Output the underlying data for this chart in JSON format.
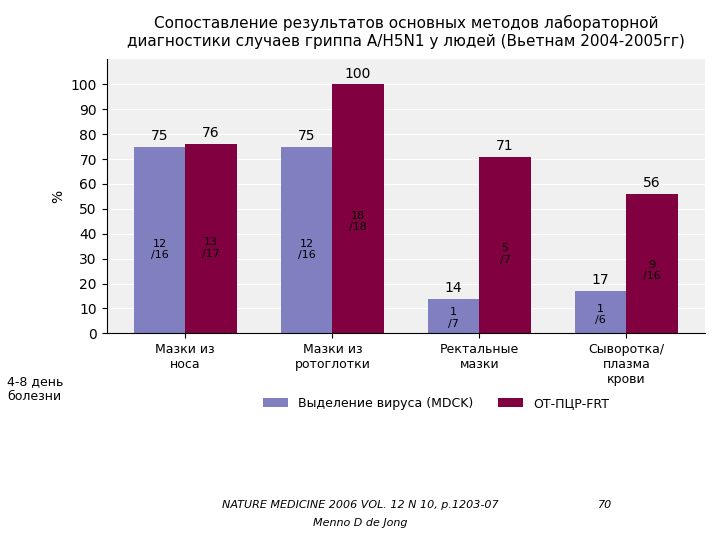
{
  "title": "Сопоставление результатов основных методов лабораторной\nдиагностики случаев гриппа А/H5N1 у людей (Вьетнам 2004-2005гг)",
  "categories": [
    "Мазки из\nноса",
    "Мазки из\nротоглотки",
    "Ректальные\nмазки",
    "Сыворотка/\nплазма\nкрови"
  ],
  "series1_values": [
    75,
    75,
    14,
    17
  ],
  "series2_values": [
    76,
    100,
    71,
    56
  ],
  "series1_label": "Выделение вируса (МDCK)",
  "series2_label": "ОТ-ПЦР-FRT",
  "series1_color": "#8080c0",
  "series2_color": "#800040",
  "series1_inner_labels": [
    "12\n/16",
    "12\n/16",
    "1\n/7",
    "1\n/6"
  ],
  "series2_inner_labels": [
    "13\n/17",
    "18\n/18",
    "5\n/7",
    "9\n/16"
  ],
  "ylabel": "%",
  "ylim": [
    0,
    110
  ],
  "yticks": [
    0,
    10,
    20,
    30,
    40,
    50,
    60,
    70,
    80,
    90,
    100
  ],
  "side_label": "4-8 день\nболезни",
  "footer1": "NATURE MEDICINE 2006 VOL. 12 N 10, р.1203-07",
  "footer2": "Menno D de Jong",
  "footer_number": "70",
  "background_color": "#f0f0f0"
}
